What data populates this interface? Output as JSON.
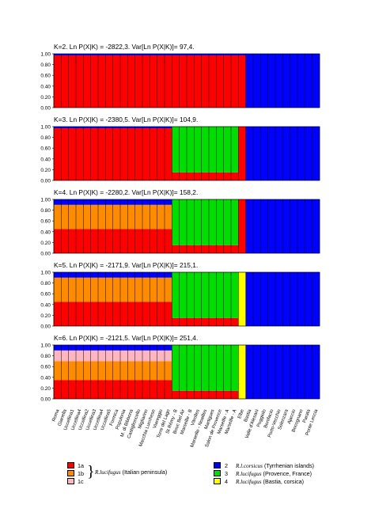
{
  "chart_data": {
    "type": "bar",
    "description_type": "stacked-bar (STRUCTURE admixture plot)",
    "yticks": [
      "0.00",
      "0.20",
      "0.40",
      "0.60",
      "0.80",
      "1.00"
    ],
    "ylim": [
      0,
      1
    ],
    "populations": [
      "Roma",
      "Gianella",
      "Uccellina1",
      "Uccellina4",
      "Uccellina2",
      "Uccellina3",
      "Uccellina4",
      "Uccellina5",
      "Formica",
      "Populonia",
      "M. di Bibbona",
      "Castiglioncello",
      "Migliarino",
      "Macchia Lucchese",
      "Viareggio",
      "Torre del Lago",
      "St Rémy - B",
      "Bouc Bel Air",
      "Marseille - B",
      "Vitrolles",
      "Marseille - Noailles",
      "Martigues",
      "Salon de Provence",
      "Marseille - A",
      "Marseille - A",
      "Elbe",
      "Bastia",
      "Valle d'Alesani",
      "Poggiolo",
      "Bonifacio",
      "Porto-Vecchio",
      "Solenzara",
      "Ajaccio",
      "Bocognano",
      "Parata",
      "Ponte Leccia"
    ],
    "panels": [
      {
        "title": "K=2. Ln P(X|K) = -2822,3. Var[Ln P(X|K)]= 97,4.",
        "segments": [
          {
            "pop_range": [
              0,
              25
            ],
            "composition": {
              "1a": 0.97,
              "2": 0.03
            }
          },
          {
            "pop_range": [
              26,
              35
            ],
            "composition": {
              "2": 1.0
            }
          }
        ]
      },
      {
        "title": "K=3. Ln P(X|K) = -2380,5. Var[Ln P(X|K)]= 104,9.",
        "segments": [
          {
            "pop_range": [
              0,
              15
            ],
            "composition": {
              "1a": 0.97,
              "2": 0.03
            }
          },
          {
            "pop_range": [
              16,
              24
            ],
            "composition": {
              "3": 0.85,
              "1a": 0.15
            }
          },
          {
            "pop_range": [
              25,
              25
            ],
            "composition": {
              "1a": 1.0
            }
          },
          {
            "pop_range": [
              26,
              35
            ],
            "composition": {
              "2": 1.0
            }
          }
        ]
      },
      {
        "title": "K=4. Ln P(X|K) = -2280,2. Var[Ln P(X|K)]= 158,2.",
        "segments": [
          {
            "pop_range": [
              0,
              15
            ],
            "composition": {
              "1a": 0.45,
              "1b": 0.45,
              "2": 0.1
            }
          },
          {
            "pop_range": [
              16,
              24
            ],
            "composition": {
              "3": 0.85,
              "1a": 0.15
            }
          },
          {
            "pop_range": [
              25,
              25
            ],
            "composition": {
              "1a": 1.0
            }
          },
          {
            "pop_range": [
              26,
              35
            ],
            "composition": {
              "2": 1.0
            }
          }
        ]
      },
      {
        "title": "K=5. Ln P(X|K) = -2171,9. Var[Ln P(X|K)]= 215,1.",
        "segments": [
          {
            "pop_range": [
              0,
              15
            ],
            "composition": {
              "1a": 0.45,
              "1b": 0.45,
              "2": 0.1
            }
          },
          {
            "pop_range": [
              16,
              24
            ],
            "composition": {
              "3": 0.85,
              "1a": 0.15
            }
          },
          {
            "pop_range": [
              25,
              25
            ],
            "composition": {
              "4": 1.0
            }
          },
          {
            "pop_range": [
              26,
              35
            ],
            "composition": {
              "2": 1.0
            }
          }
        ]
      },
      {
        "title": "K=6. Ln P(X|K) = -2121,5. Var[Ln P(X|K)]= 251,4.",
        "segments": [
          {
            "pop_range": [
              0,
              15
            ],
            "composition": {
              "1a": 0.35,
              "1b": 0.35,
              "1c": 0.2,
              "2": 0.1
            }
          },
          {
            "pop_range": [
              16,
              24
            ],
            "composition": {
              "3": 0.85,
              "1a": 0.15
            }
          },
          {
            "pop_range": [
              25,
              25
            ],
            "composition": {
              "4": 1.0
            }
          },
          {
            "pop_range": [
              26,
              35
            ],
            "composition": {
              "2": 1.0
            }
          }
        ]
      }
    ],
    "legend": [
      {
        "code": "1a",
        "color": "#ff0000"
      },
      {
        "code": "1b",
        "color": "#ff8c00"
      },
      {
        "code": "1c",
        "color": "#ffb6c1"
      },
      {
        "code": "2",
        "color": "#0000ff",
        "species": "R.l.corsicus",
        "region": "(Tyrrhenian islands)"
      },
      {
        "code": "3",
        "color": "#00dd00",
        "species": "R.lucifugus",
        "region": "(Provence, France)"
      },
      {
        "code": "4",
        "color": "#ffff00",
        "species": "R.lucifugus",
        "region": "(Bastia, corsica)"
      }
    ],
    "legend_group_1": {
      "species": "R.lucifugus",
      "region": "(Italian peninsula)"
    }
  }
}
